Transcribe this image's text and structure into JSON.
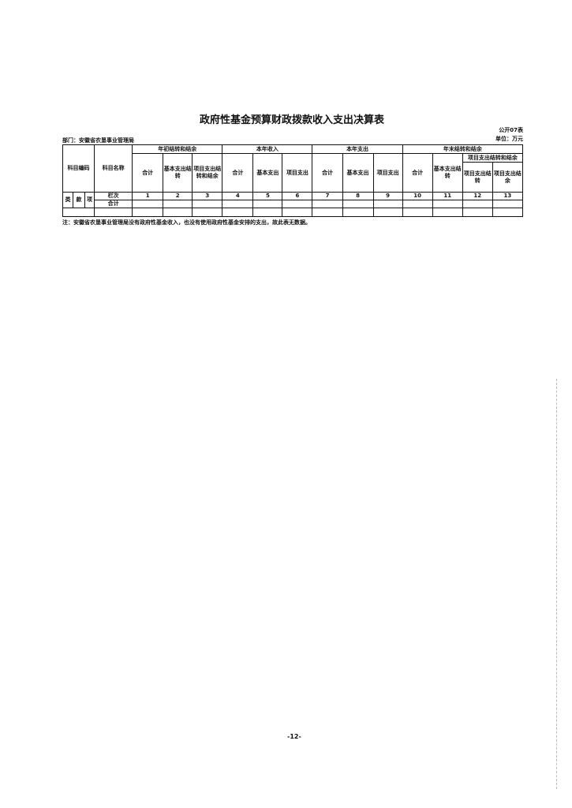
{
  "title": "政府性基金预算财政拨款收入支出决算表",
  "table_code": "公开07表",
  "unit": "单位：万元",
  "department": "部门：安徽省农垦事业管理局",
  "headers": {
    "subject_code": "科目编码",
    "subject_name": "科目名称",
    "group_beginning": "年初结转和结余",
    "group_income": "本年收入",
    "group_expense": "本年支出",
    "group_ending": "年末结转和结余",
    "sub_project_ending": "项目支出结转和结余",
    "total": "合计",
    "basic_carry": "基本支出结转",
    "project_carry_balance": "项目支出结转和结余",
    "basic": "基本支出",
    "project": "项目支出",
    "project_carry": "项目支出结转",
    "project_balance": "项目支出结余",
    "lei": "类",
    "kuan": "款",
    "xiang": "项",
    "column_row": "栏次",
    "total_row": "合计"
  },
  "column_numbers": [
    "1",
    "2",
    "3",
    "4",
    "5",
    "6",
    "7",
    "8",
    "9",
    "10",
    "11",
    "12",
    "13"
  ],
  "note": "注：安徽省农垦事业管理局没有政府性基金收入，也没有使用政府性基金安排的支出，故此表无数据。",
  "page_number": "-12-"
}
